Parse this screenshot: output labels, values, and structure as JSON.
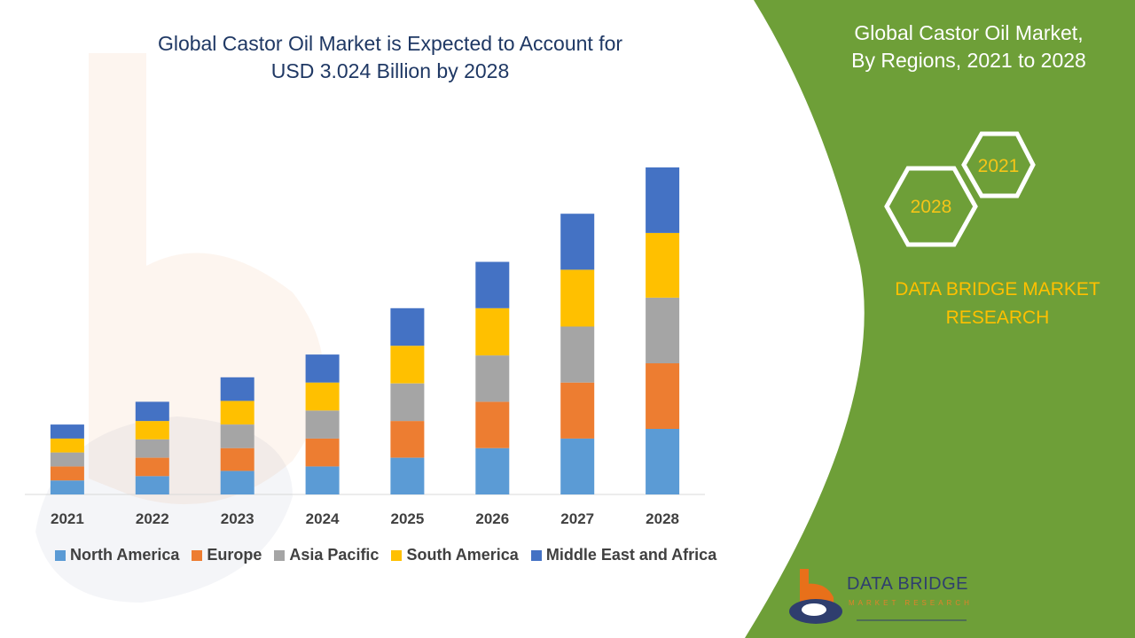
{
  "header": {
    "title_line1": "Global Castor Oil Market is Expected to Account for",
    "title_line2": "USD 3.024 Billion by 2028"
  },
  "side_panel": {
    "title_line1": "Global Castor Oil Market,",
    "title_line2": "By Regions, 2021 to 2028",
    "hex_years": [
      "2021",
      "2028"
    ],
    "brand_line1": "DATA BRIDGE MARKET",
    "brand_line2": "RESEARCH"
  },
  "logo": {
    "name": "DATA BRIDGE",
    "sub": "MARKET RESEARCH"
  },
  "colors": {
    "green": "#6e9f38",
    "title_blue": "#1f3864",
    "brand_yellow": "#ffc000"
  },
  "chart_data": {
    "type": "bar",
    "stacked": true,
    "categories": [
      "2021",
      "2022",
      "2023",
      "2024",
      "2025",
      "2026",
      "2027",
      "2028"
    ],
    "series": [
      {
        "name": "North America",
        "color": "#5b9bd5",
        "values": [
          16,
          21,
          27,
          32,
          42,
          53,
          64,
          75
        ]
      },
      {
        "name": "Europe",
        "color": "#ed7d31",
        "values": [
          16,
          21,
          26,
          32,
          42,
          53,
          64,
          75
        ]
      },
      {
        "name": "Asia Pacific",
        "color": "#a5a5a5",
        "values": [
          16,
          21,
          27,
          32,
          43,
          53,
          64,
          75
        ]
      },
      {
        "name": "South America",
        "color": "#ffc000",
        "values": [
          16,
          21,
          27,
          32,
          43,
          54,
          65,
          74
        ]
      },
      {
        "name": "Middle East and Africa",
        "color": "#4472c4",
        "values": [
          16,
          22,
          27,
          32,
          43,
          53,
          64,
          75
        ]
      }
    ],
    "ylim": [
      0,
      380
    ],
    "grid": false,
    "legend": "bottom"
  }
}
